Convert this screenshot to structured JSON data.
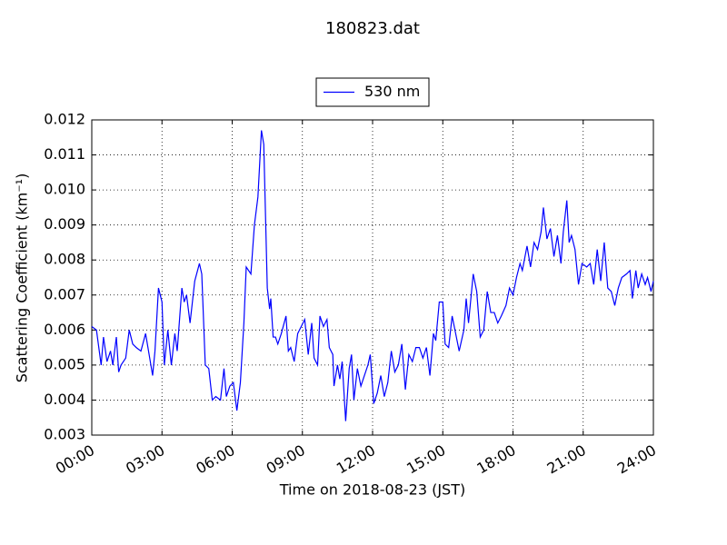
{
  "chart_data": {
    "type": "line",
    "title": "180823.dat",
    "xlabel": "Time on 2018-08-23 (JST)",
    "ylabel": "Scattering Coefficient (km⁻¹)",
    "legend": "top",
    "grid": true,
    "xlim": [
      0,
      24
    ],
    "xticks": [
      {
        "value": 0,
        "label": "00:00"
      },
      {
        "value": 3,
        "label": "03:00"
      },
      {
        "value": 6,
        "label": "06:00"
      },
      {
        "value": 9,
        "label": "09:00"
      },
      {
        "value": 12,
        "label": "12:00"
      },
      {
        "value": 15,
        "label": "15:00"
      },
      {
        "value": 18,
        "label": "18:00"
      },
      {
        "value": 21,
        "label": "21:00"
      },
      {
        "value": 24,
        "label": "24:00"
      }
    ],
    "ylim": [
      0.003,
      0.012
    ],
    "yticks": [
      0.003,
      0.004,
      0.005,
      0.006,
      0.007,
      0.008,
      0.009,
      {
        "value": 0.01,
        "label": "0.010"
      },
      0.011,
      0.012
    ],
    "x": [
      0,
      0.2,
      0.4,
      0.5,
      0.65,
      0.8,
      0.9,
      1.05,
      1.15,
      1.25,
      1.45,
      1.6,
      1.75,
      1.9,
      2.1,
      2.3,
      2.45,
      2.6,
      2.7,
      2.85,
      3.0,
      3.1,
      3.25,
      3.4,
      3.55,
      3.65,
      3.85,
      3.95,
      4.05,
      4.2,
      4.4,
      4.6,
      4.7,
      4.85,
      5.0,
      5.15,
      5.3,
      5.5,
      5.65,
      5.75,
      5.9,
      6.05,
      6.2,
      6.35,
      6.5,
      6.6,
      6.8,
      6.95,
      7.1,
      7.25,
      7.35,
      7.5,
      7.6,
      7.65,
      7.75,
      7.85,
      7.95,
      8.1,
      8.3,
      8.4,
      8.5,
      8.65,
      8.8,
      8.95,
      9.1,
      9.25,
      9.4,
      9.5,
      9.65,
      9.75,
      9.9,
      10.05,
      10.15,
      10.3,
      10.35,
      10.5,
      10.6,
      10.7,
      10.85,
      11.0,
      11.1,
      11.2,
      11.35,
      11.5,
      11.65,
      11.8,
      11.9,
      12.05,
      12.2,
      12.35,
      12.5,
      12.65,
      12.8,
      12.95,
      13.1,
      13.25,
      13.4,
      13.55,
      13.7,
      13.85,
      14.0,
      14.15,
      14.3,
      14.45,
      14.6,
      14.7,
      14.85,
      15.0,
      15.1,
      15.25,
      15.4,
      15.55,
      15.7,
      15.9,
      16.0,
      16.1,
      16.3,
      16.45,
      16.6,
      16.75,
      16.9,
      17.05,
      17.2,
      17.35,
      17.5,
      17.7,
      17.85,
      18.0,
      18.15,
      18.3,
      18.4,
      18.6,
      18.75,
      18.9,
      19.05,
      19.2,
      19.3,
      19.45,
      19.6,
      19.75,
      19.9,
      20.05,
      20.15,
      20.3,
      20.4,
      20.5,
      20.65,
      20.8,
      20.95,
      21.15,
      21.3,
      21.45,
      21.6,
      21.75,
      21.9,
      22.05,
      22.2,
      22.35,
      22.5,
      22.65,
      22.85,
      23.0,
      23.1,
      23.25,
      23.35,
      23.5,
      23.65,
      23.75,
      23.9,
      24.0
    ],
    "series": [
      {
        "name": "530 nm",
        "color": "#0000ff",
        "values": [
          0.0061,
          0.006,
          0.005,
          0.0058,
          0.0051,
          0.0054,
          0.005,
          0.0058,
          0.0048,
          0.005,
          0.0052,
          0.006,
          0.0056,
          0.0055,
          0.0054,
          0.0059,
          0.0053,
          0.0047,
          0.0054,
          0.0072,
          0.0068,
          0.005,
          0.006,
          0.005,
          0.0059,
          0.0054,
          0.0072,
          0.0068,
          0.007,
          0.0062,
          0.0074,
          0.0079,
          0.0076,
          0.005,
          0.0049,
          0.004,
          0.0041,
          0.004,
          0.0049,
          0.0041,
          0.0044,
          0.0045,
          0.0037,
          0.0045,
          0.0062,
          0.0078,
          0.0076,
          0.009,
          0.0098,
          0.0117,
          0.0113,
          0.0072,
          0.0066,
          0.0069,
          0.0058,
          0.0058,
          0.0056,
          0.0059,
          0.0064,
          0.0054,
          0.0055,
          0.0051,
          0.0059,
          0.0061,
          0.0063,
          0.0053,
          0.0062,
          0.0052,
          0.005,
          0.0064,
          0.0061,
          0.0063,
          0.0055,
          0.0053,
          0.0044,
          0.005,
          0.0046,
          0.0051,
          0.0034,
          0.0049,
          0.0053,
          0.004,
          0.0049,
          0.0044,
          0.0047,
          0.005,
          0.0053,
          0.0039,
          0.0042,
          0.0047,
          0.0041,
          0.0045,
          0.0054,
          0.0048,
          0.005,
          0.0056,
          0.0043,
          0.0053,
          0.0051,
          0.0055,
          0.0055,
          0.0052,
          0.0055,
          0.0047,
          0.0059,
          0.0057,
          0.0068,
          0.0068,
          0.0056,
          0.0055,
          0.0064,
          0.0059,
          0.0054,
          0.006,
          0.0069,
          0.0062,
          0.0076,
          0.0071,
          0.0058,
          0.006,
          0.0071,
          0.0065,
          0.0065,
          0.0062,
          0.0064,
          0.0067,
          0.0072,
          0.007,
          0.0075,
          0.0079,
          0.0077,
          0.0084,
          0.0078,
          0.0085,
          0.0083,
          0.0088,
          0.0095,
          0.0086,
          0.0089,
          0.0081,
          0.0087,
          0.0079,
          0.0088,
          0.0097,
          0.0085,
          0.0087,
          0.0083,
          0.0073,
          0.0079,
          0.0078,
          0.0079,
          0.0073,
          0.0083,
          0.0074,
          0.0085,
          0.0072,
          0.0071,
          0.0067,
          0.0072,
          0.0075,
          0.0076,
          0.0077,
          0.0069,
          0.0077,
          0.0072,
          0.0076,
          0.0073,
          0.0075,
          0.0071,
          0.0074
        ]
      }
    ]
  }
}
